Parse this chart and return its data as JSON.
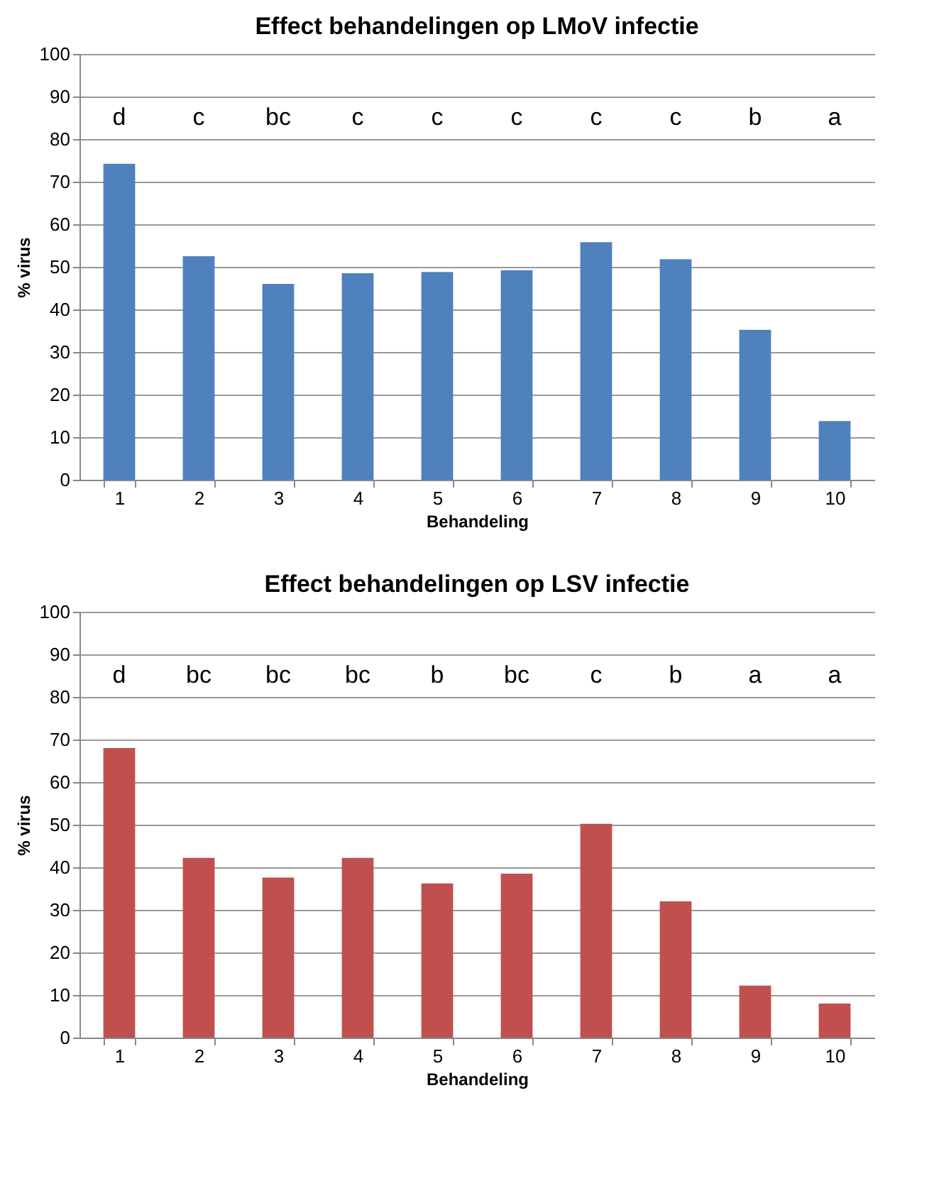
{
  "chart_data": [
    {
      "type": "bar",
      "title": "Effect behandelingen op LMoV infectie",
      "xlabel": "Behandeling",
      "ylabel": "% virus",
      "categories": [
        "1",
        "2",
        "3",
        "4",
        "5",
        "6",
        "7",
        "8",
        "9",
        "10"
      ],
      "series": [
        {
          "color": "#4f81bd",
          "values": [
            74.2,
            52.5,
            46,
            48.5,
            48.8,
            49.2,
            55.8,
            51.8,
            35.2,
            13.8
          ]
        }
      ],
      "ylim": [
        0,
        100
      ],
      "yticks": [
        0,
        10,
        20,
        30,
        40,
        50,
        60,
        70,
        80,
        90,
        100
      ],
      "grid": "y",
      "legend": false,
      "annotations": [
        "d",
        "c",
        "bc",
        "c",
        "c",
        "c",
        "c",
        "c",
        "b",
        "a"
      ]
    },
    {
      "type": "bar",
      "title": "Effect behandelingen op LSV infectie",
      "xlabel": "Behandeling",
      "ylabel": "% virus",
      "categories": [
        "1",
        "2",
        "3",
        "4",
        "5",
        "6",
        "7",
        "8",
        "9",
        "10"
      ],
      "series": [
        {
          "color": "#c0504d",
          "values": [
            68,
            42.2,
            37.6,
            42.2,
            36.2,
            38.5,
            50.2,
            32,
            12.2,
            8
          ]
        }
      ],
      "ylim": [
        0,
        100
      ],
      "yticks": [
        0,
        10,
        20,
        30,
        40,
        50,
        60,
        70,
        80,
        90,
        100
      ],
      "grid": "y",
      "legend": false,
      "annotations": [
        "d",
        "bc",
        "bc",
        "bc",
        "b",
        "bc",
        "c",
        "b",
        "a",
        "a"
      ]
    }
  ]
}
